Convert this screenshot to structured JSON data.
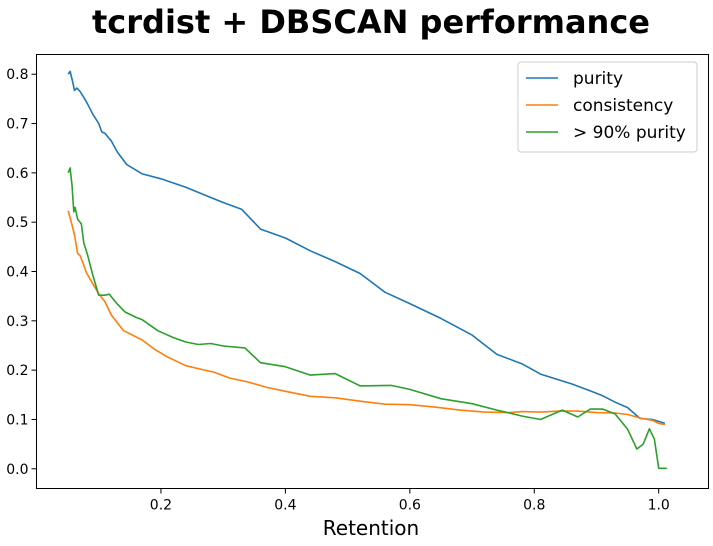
{
  "chart_data": {
    "type": "line",
    "title": "tcrdist + DBSCAN performance",
    "xlabel": "Retention",
    "ylabel": "",
    "xlim": [
      0.0,
      1.08
    ],
    "ylim": [
      -0.04,
      0.84
    ],
    "xticks": [
      0.2,
      0.4,
      0.6,
      0.8,
      1.0
    ],
    "xtick_labels": [
      "0.2",
      "0.4",
      "0.6",
      "0.8",
      "1.0"
    ],
    "yticks": [
      0.0,
      0.1,
      0.2,
      0.3,
      0.4,
      0.5,
      0.6,
      0.7,
      0.8
    ],
    "ytick_labels": [
      "0.0",
      "0.1",
      "0.2",
      "0.3",
      "0.4",
      "0.5",
      "0.6",
      "0.7",
      "0.8"
    ],
    "grid": false,
    "legend_position": "top-right",
    "series": [
      {
        "name": "purity",
        "color": "#1f77b4",
        "points": [
          [
            0.051,
            0.8
          ],
          [
            0.054,
            0.806
          ],
          [
            0.058,
            0.785
          ],
          [
            0.061,
            0.767
          ],
          [
            0.065,
            0.772
          ],
          [
            0.07,
            0.765
          ],
          [
            0.075,
            0.755
          ],
          [
            0.082,
            0.74
          ],
          [
            0.09,
            0.72
          ],
          [
            0.1,
            0.7
          ],
          [
            0.105,
            0.683
          ],
          [
            0.11,
            0.68
          ],
          [
            0.12,
            0.665
          ],
          [
            0.13,
            0.642
          ],
          [
            0.145,
            0.617
          ],
          [
            0.17,
            0.598
          ],
          [
            0.2,
            0.588
          ],
          [
            0.24,
            0.571
          ],
          [
            0.28,
            0.55
          ],
          [
            0.3,
            0.54
          ],
          [
            0.33,
            0.526
          ],
          [
            0.36,
            0.486
          ],
          [
            0.4,
            0.468
          ],
          [
            0.44,
            0.442
          ],
          [
            0.48,
            0.42
          ],
          [
            0.52,
            0.396
          ],
          [
            0.56,
            0.358
          ],
          [
            0.6,
            0.335
          ],
          [
            0.65,
            0.305
          ],
          [
            0.7,
            0.271
          ],
          [
            0.74,
            0.232
          ],
          [
            0.78,
            0.213
          ],
          [
            0.81,
            0.192
          ],
          [
            0.86,
            0.172
          ],
          [
            0.89,
            0.158
          ],
          [
            0.91,
            0.148
          ],
          [
            0.93,
            0.135
          ],
          [
            0.95,
            0.124
          ],
          [
            0.97,
            0.102
          ],
          [
            0.99,
            0.1
          ],
          [
            1.0,
            0.096
          ],
          [
            1.01,
            0.092
          ]
        ]
      },
      {
        "name": "consistency",
        "color": "#ff7f0e",
        "points": [
          [
            0.051,
            0.523
          ],
          [
            0.056,
            0.5
          ],
          [
            0.061,
            0.474
          ],
          [
            0.066,
            0.437
          ],
          [
            0.07,
            0.432
          ],
          [
            0.075,
            0.416
          ],
          [
            0.08,
            0.398
          ],
          [
            0.09,
            0.376
          ],
          [
            0.1,
            0.355
          ],
          [
            0.11,
            0.339
          ],
          [
            0.12,
            0.312
          ],
          [
            0.14,
            0.28
          ],
          [
            0.17,
            0.261
          ],
          [
            0.19,
            0.242
          ],
          [
            0.21,
            0.227
          ],
          [
            0.24,
            0.209
          ],
          [
            0.27,
            0.2
          ],
          [
            0.285,
            0.196
          ],
          [
            0.31,
            0.184
          ],
          [
            0.34,
            0.176
          ],
          [
            0.37,
            0.165
          ],
          [
            0.4,
            0.157
          ],
          [
            0.44,
            0.147
          ],
          [
            0.48,
            0.144
          ],
          [
            0.52,
            0.137
          ],
          [
            0.56,
            0.131
          ],
          [
            0.6,
            0.13
          ],
          [
            0.64,
            0.125
          ],
          [
            0.68,
            0.119
          ],
          [
            0.72,
            0.115
          ],
          [
            0.76,
            0.114
          ],
          [
            0.78,
            0.116
          ],
          [
            0.81,
            0.115
          ],
          [
            0.84,
            0.117
          ],
          [
            0.87,
            0.117
          ],
          [
            0.9,
            0.114
          ],
          [
            0.93,
            0.113
          ],
          [
            0.95,
            0.11
          ],
          [
            0.97,
            0.103
          ],
          [
            0.99,
            0.098
          ],
          [
            1.0,
            0.092
          ],
          [
            1.01,
            0.09
          ]
        ]
      },
      {
        "name": "> 90% purity",
        "color": "#2ca02c",
        "points": [
          [
            0.051,
            0.6
          ],
          [
            0.054,
            0.61
          ],
          [
            0.057,
            0.575
          ],
          [
            0.06,
            0.521
          ],
          [
            0.062,
            0.53
          ],
          [
            0.066,
            0.506
          ],
          [
            0.072,
            0.497
          ],
          [
            0.076,
            0.458
          ],
          [
            0.082,
            0.434
          ],
          [
            0.09,
            0.395
          ],
          [
            0.1,
            0.352
          ],
          [
            0.11,
            0.352
          ],
          [
            0.117,
            0.354
          ],
          [
            0.13,
            0.334
          ],
          [
            0.142,
            0.318
          ],
          [
            0.16,
            0.307
          ],
          [
            0.17,
            0.302
          ],
          [
            0.195,
            0.28
          ],
          [
            0.22,
            0.266
          ],
          [
            0.24,
            0.257
          ],
          [
            0.26,
            0.252
          ],
          [
            0.28,
            0.254
          ],
          [
            0.3,
            0.249
          ],
          [
            0.335,
            0.245
          ],
          [
            0.36,
            0.215
          ],
          [
            0.4,
            0.207
          ],
          [
            0.44,
            0.19
          ],
          [
            0.48,
            0.193
          ],
          [
            0.52,
            0.168
          ],
          [
            0.57,
            0.169
          ],
          [
            0.6,
            0.161
          ],
          [
            0.65,
            0.142
          ],
          [
            0.7,
            0.132
          ],
          [
            0.74,
            0.119
          ],
          [
            0.78,
            0.107
          ],
          [
            0.81,
            0.1
          ],
          [
            0.845,
            0.119
          ],
          [
            0.87,
            0.105
          ],
          [
            0.89,
            0.121
          ],
          [
            0.91,
            0.121
          ],
          [
            0.93,
            0.111
          ],
          [
            0.95,
            0.08
          ],
          [
            0.965,
            0.04
          ],
          [
            0.975,
            0.05
          ],
          [
            0.985,
            0.081
          ],
          [
            0.993,
            0.06
          ],
          [
            1.0,
            0.001
          ],
          [
            1.013,
            0.001
          ]
        ]
      }
    ]
  }
}
